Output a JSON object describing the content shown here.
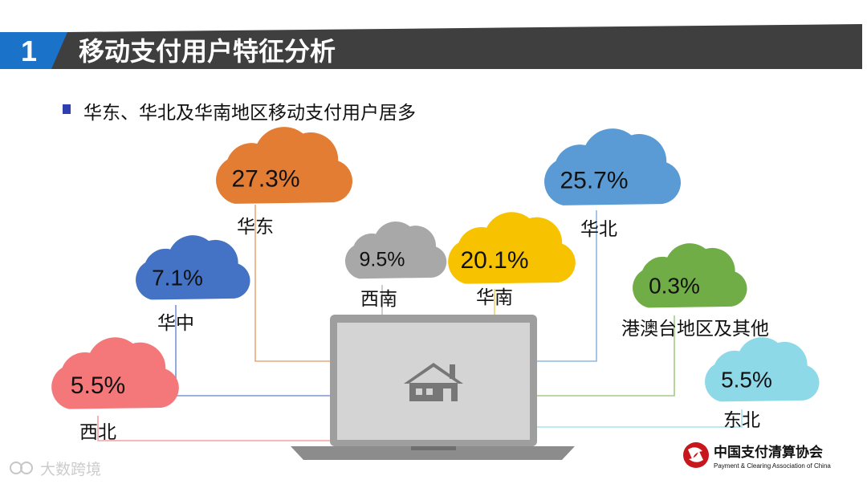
{
  "header": {
    "section_number": "1",
    "title": "移动支付用户特征分析",
    "colors": {
      "number_bg": "#1a73c8",
      "title_bg": "#3f3f3f"
    }
  },
  "subtitle": "华东、华北及华南地区移动支付用户居多",
  "chart_data": {
    "type": "bar",
    "title": "",
    "categories": [
      "华东",
      "华北",
      "华南",
      "西南",
      "华中",
      "西北",
      "东北",
      "港澳台地区及其他"
    ],
    "values": [
      27.3,
      25.7,
      20.1,
      9.5,
      7.1,
      5.5,
      5.5,
      0.3
    ],
    "value_labels": [
      "27.3%",
      "25.7%",
      "20.1%",
      "9.5%",
      "7.1%",
      "5.5%",
      "5.5%",
      "0.3%"
    ],
    "colors": [
      "#e47d34",
      "#5b9bd5",
      "#f7c300",
      "#a8a8a8",
      "#4472c4",
      "#f4787a",
      "#8ed9e8",
      "#70ad47"
    ],
    "unit": "%"
  },
  "laptop": {
    "icon": "house-icon"
  },
  "footer": {
    "org_name": "中国支付清算协会",
    "org_name_en": "Payment & Clearing Association of China",
    "watermark": "大数跨境"
  }
}
